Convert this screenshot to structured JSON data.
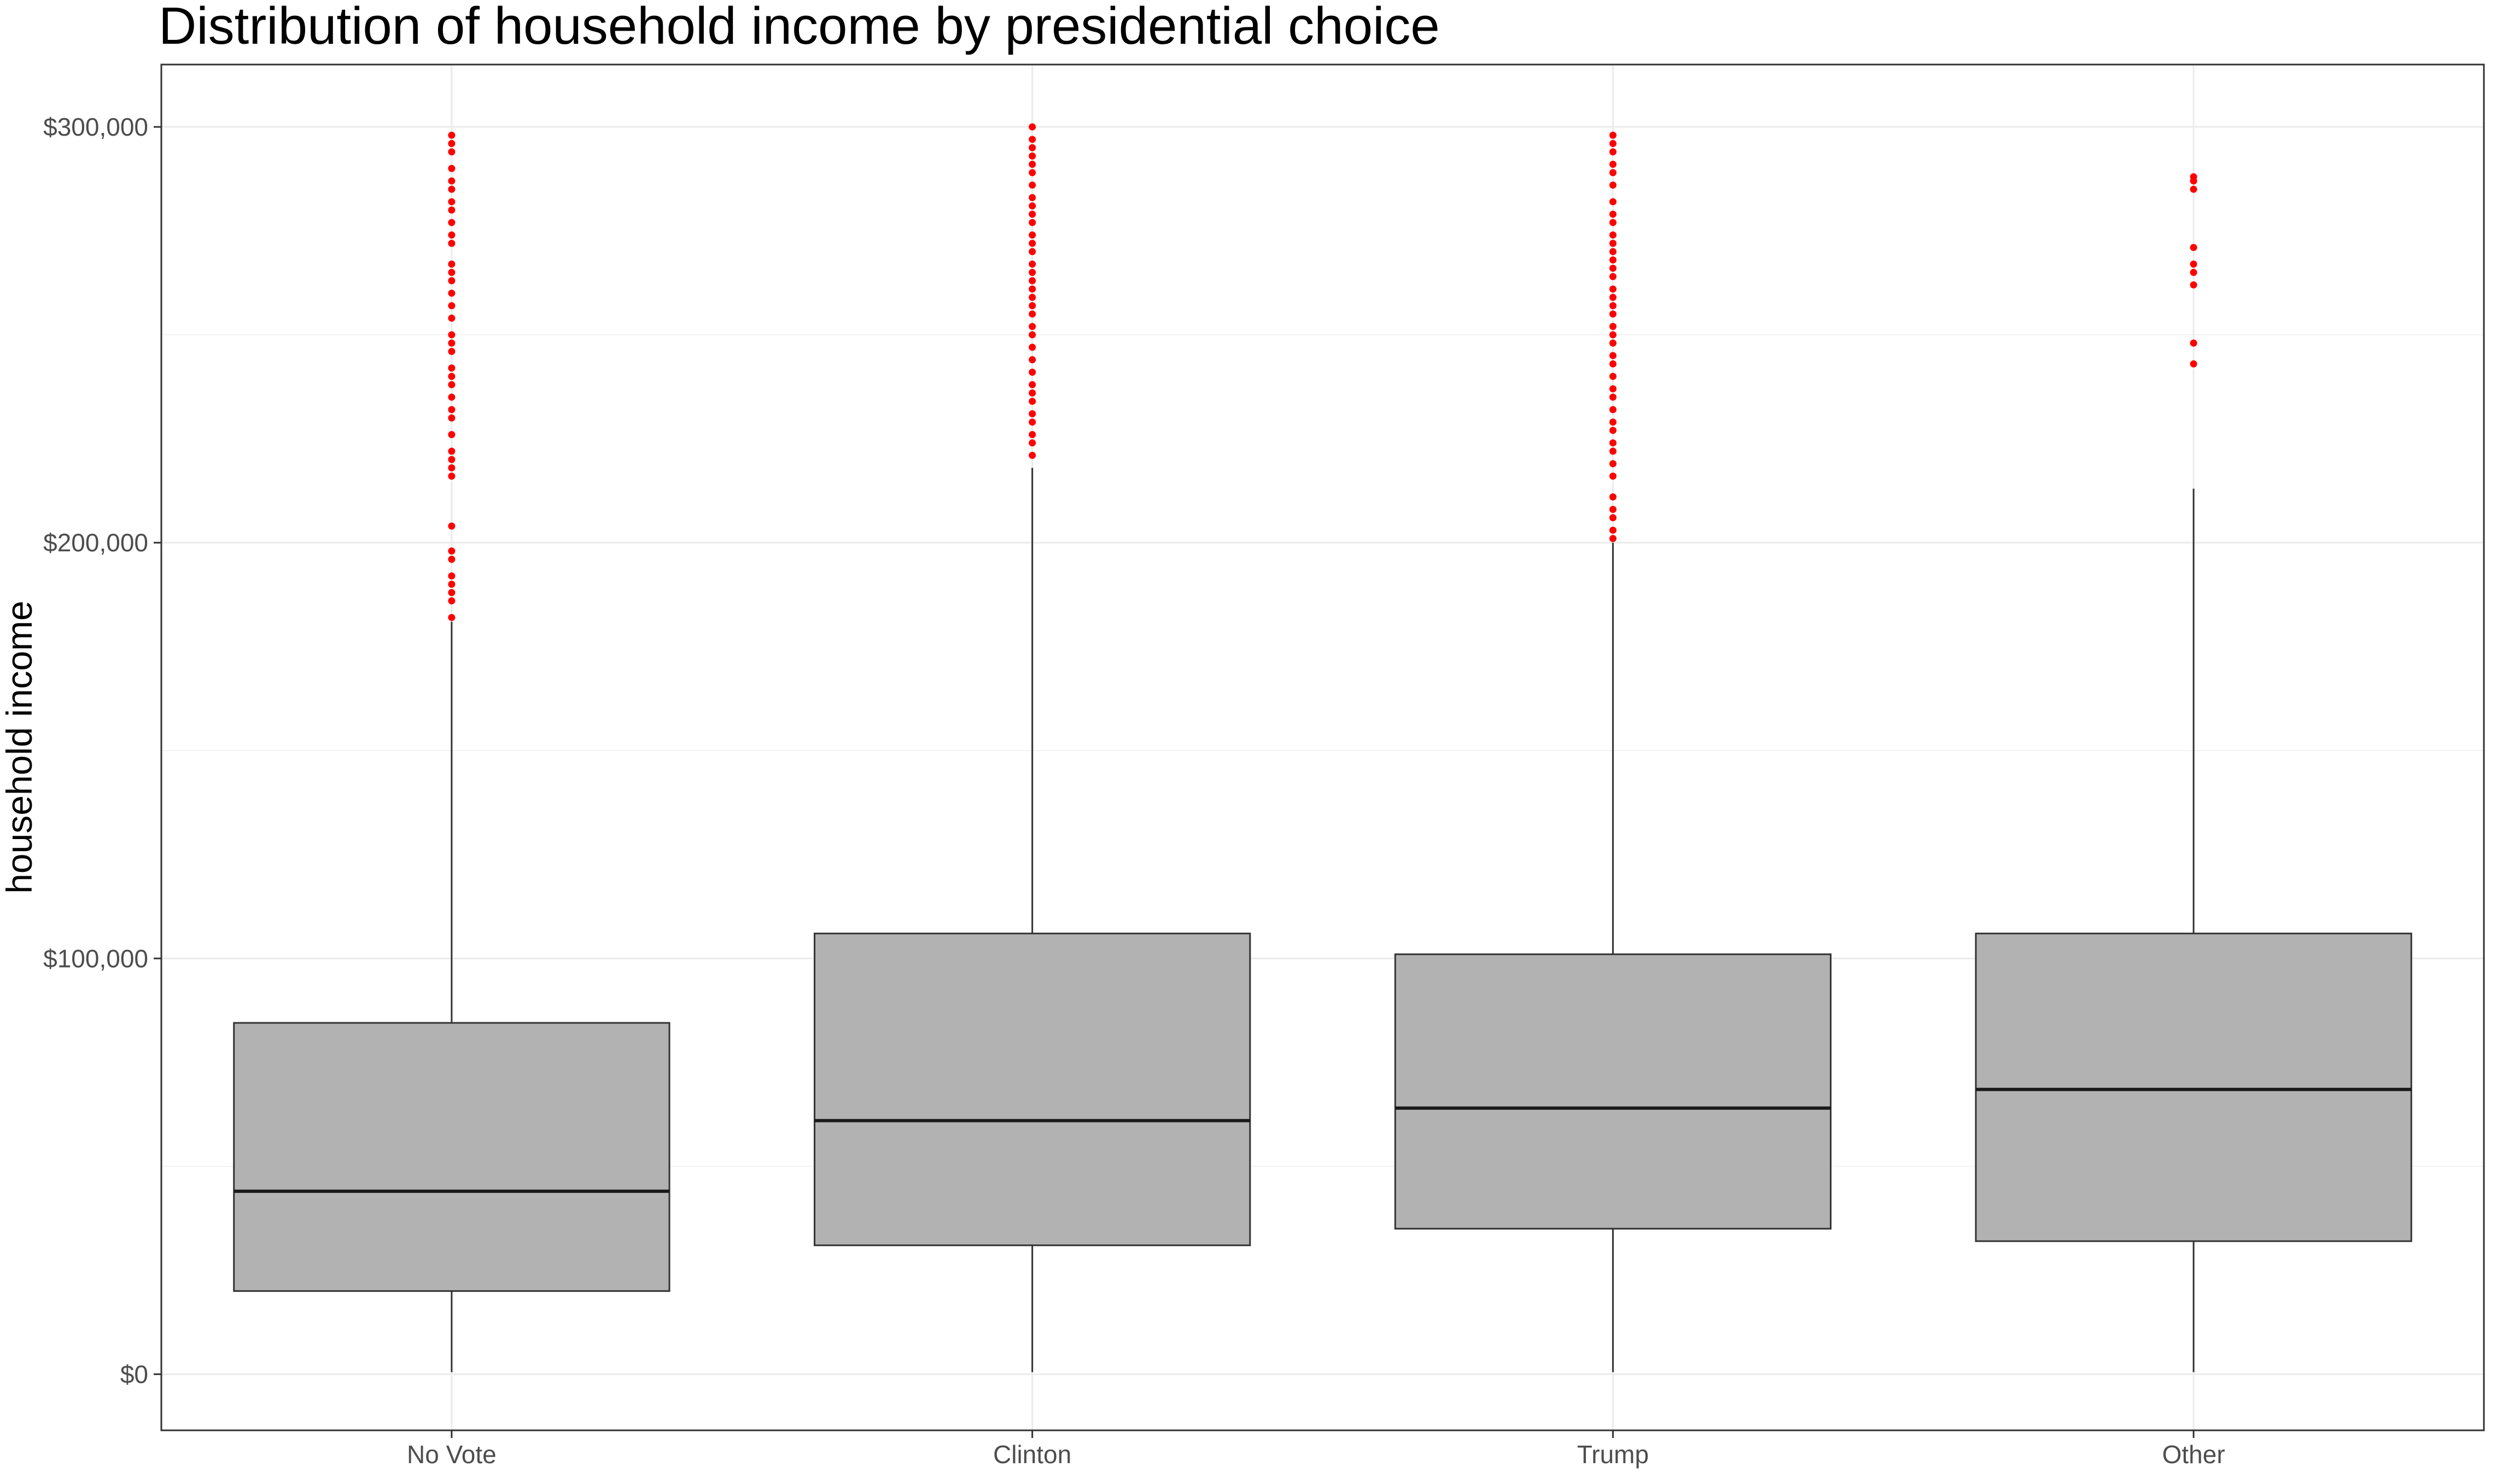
{
  "chart_data": {
    "type": "boxplot",
    "title": "Distribution of household income by presidential choice",
    "xlabel": "",
    "ylabel": "household income",
    "ylim": [
      -13500,
      315000
    ],
    "grid": true,
    "legend": "none",
    "y_ticks": [
      0,
      100000,
      200000,
      300000
    ],
    "y_tick_labels": [
      "$0",
      "$100,000",
      "$200,000",
      "$300,000"
    ],
    "categories": [
      "No Vote",
      "Clinton",
      "Trump",
      "Other"
    ],
    "colors": {
      "box_fill": "#b2b2b2",
      "box_stroke": "#333333",
      "outlier": "#ff0000",
      "grid": "#ebebeb",
      "panel_border": "#333333"
    },
    "boxes": [
      {
        "category": "No Vote",
        "min": 500,
        "q1": 20000,
        "median": 44000,
        "q3": 84500,
        "max": 181000,
        "outliers": [
          182000,
          186000,
          188000,
          190000,
          192000,
          196000,
          198000,
          204000,
          216000,
          218000,
          220000,
          222000,
          226000,
          230000,
          232000,
          235000,
          238000,
          240000,
          242000,
          246000,
          248000,
          250000,
          254000,
          257000,
          260000,
          263000,
          265000,
          267000,
          272000,
          274000,
          277000,
          280000,
          282000,
          285000,
          287000,
          290000,
          294000,
          296000,
          298000
        ]
      },
      {
        "category": "Clinton",
        "min": 500,
        "q1": 31000,
        "median": 61000,
        "q3": 106000,
        "max": 218000,
        "outliers": [
          221000,
          224000,
          226000,
          229000,
          231000,
          234000,
          236000,
          238000,
          241000,
          244000,
          247000,
          250000,
          252000,
          255000,
          257000,
          259000,
          261000,
          263000,
          265000,
          267000,
          270000,
          272000,
          274000,
          277000,
          279000,
          281000,
          283000,
          286000,
          289000,
          291000,
          293000,
          295000,
          297000,
          300000
        ]
      },
      {
        "category": "Trump",
        "min": 500,
        "q1": 35000,
        "median": 64000,
        "q3": 101000,
        "max": 200000,
        "outliers": [
          201000,
          203000,
          206000,
          208000,
          211000,
          216000,
          219000,
          222000,
          224000,
          227000,
          229000,
          232000,
          235000,
          237000,
          240000,
          243000,
          245000,
          248000,
          250000,
          252000,
          255000,
          257000,
          259000,
          261000,
          264000,
          266000,
          268000,
          270000,
          272000,
          274000,
          277000,
          279000,
          282000,
          286000,
          289000,
          291000,
          294000,
          296000,
          298000
        ]
      },
      {
        "category": "Other",
        "min": 500,
        "q1": 32000,
        "median": 68500,
        "q3": 106000,
        "max": 213000,
        "outliers": [
          243000,
          248000,
          262000,
          265000,
          267000,
          271000,
          285000,
          287000,
          288000
        ]
      }
    ]
  }
}
